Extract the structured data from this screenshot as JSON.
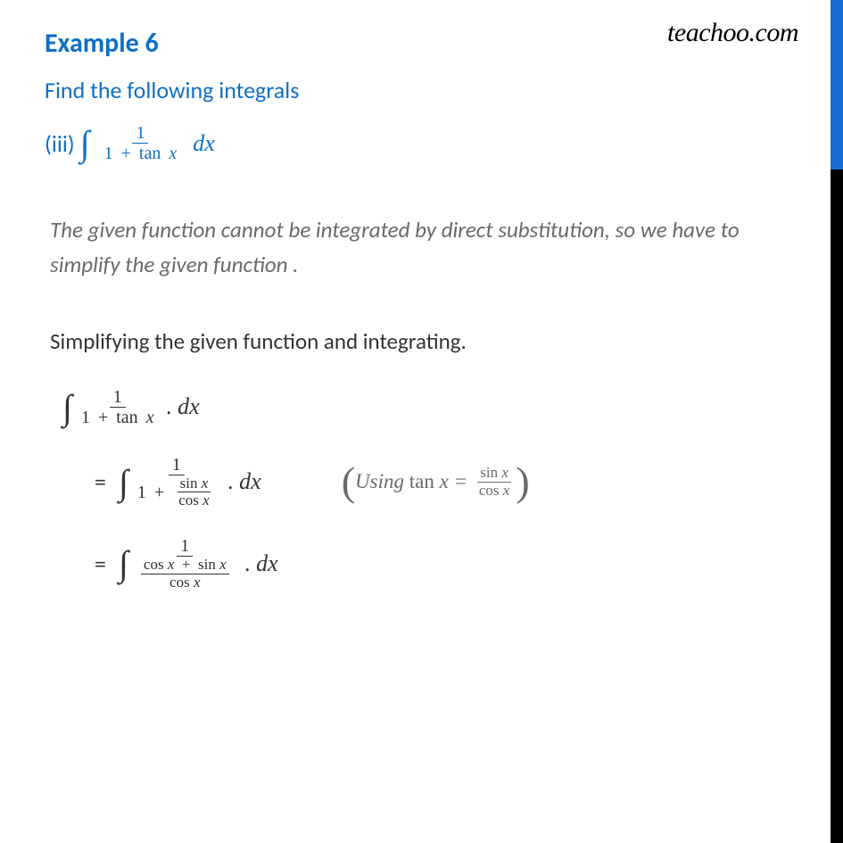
{
  "watermark": "teachoo.com",
  "title": "Example 6",
  "prompt": "Find the following integrals",
  "part_label": "(iii)",
  "note": "The given function cannot be integrated by direct substitution, so we have to simplify the given function .",
  "step_intro": "Simplifying the given function and integrating.",
  "sym": {
    "integral": "∫",
    "one": "1",
    "plus": "+",
    "tan": "tan",
    "sin": "sin",
    "cos": "cos",
    "x": "x",
    "dx": "dx",
    "dot": ".",
    "eq": "=",
    "using": "Using",
    "lparen": "(",
    "rparen": ")"
  },
  "colors": {
    "accent": "#0f6fc6",
    "body": "#333333",
    "muted": "#6a6a6a",
    "sidebar_top": "#1a6dd0",
    "sidebar_bottom": "#000000",
    "background": "#ffffff"
  }
}
